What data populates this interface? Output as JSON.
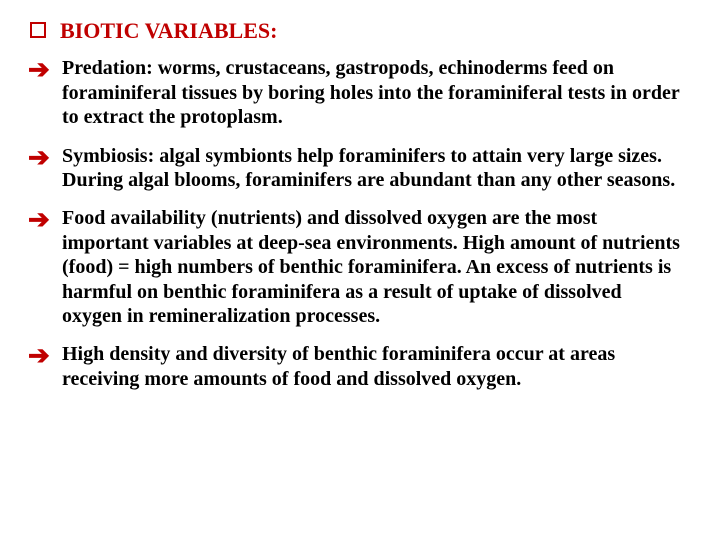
{
  "heading": {
    "text": "BIOTIC VARIABLES:",
    "color": "#c00000",
    "bullet_border_color": "#c00000"
  },
  "arrow_color": "#c00000",
  "bullets": [
    {
      "text": "Predation: worms, crustaceans, gastropods, echinoderms feed on foraminiferal tissues by boring holes into the foraminiferal tests in order to extract the protoplasm."
    },
    {
      "text": "Symbiosis: algal symbionts help foraminifers to attain very large sizes. During algal blooms, foraminifers are abundant than any other seasons."
    },
    {
      "text": "Food availability (nutrients) and dissolved oxygen are the most important variables at deep-sea environments. High amount of nutrients (food) = high numbers of benthic foraminifera. An excess of nutrients is harmful on benthic foraminifera as a result of uptake of dissolved oxygen in remineralization processes."
    },
    {
      "text": "High density and diversity of benthic foraminifera occur at areas receiving more amounts of food and dissolved oxygen."
    }
  ]
}
